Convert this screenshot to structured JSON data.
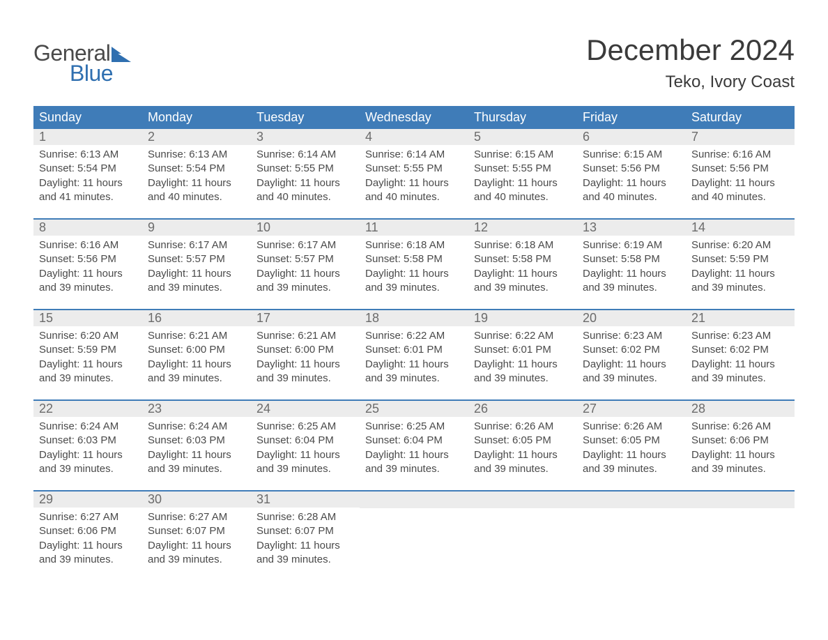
{
  "logo": {
    "text1": "General",
    "text2": "Blue"
  },
  "title": "December 2024",
  "location": "Teko, Ivory Coast",
  "colors": {
    "header_bg": "#3f7cb8",
    "header_text": "#ffffff",
    "daynum_bg": "#ececec",
    "daynum_text": "#6b6b6b",
    "body_text": "#4a4a4a",
    "week_border": "#3f7cb8",
    "logo_blue": "#2f6fb0"
  },
  "day_names": [
    "Sunday",
    "Monday",
    "Tuesday",
    "Wednesday",
    "Thursday",
    "Friday",
    "Saturday"
  ],
  "weeks": [
    [
      {
        "n": "1",
        "sunrise": "Sunrise: 6:13 AM",
        "sunset": "Sunset: 5:54 PM",
        "daylight": "Daylight: 11 hours and 41 minutes."
      },
      {
        "n": "2",
        "sunrise": "Sunrise: 6:13 AM",
        "sunset": "Sunset: 5:54 PM",
        "daylight": "Daylight: 11 hours and 40 minutes."
      },
      {
        "n": "3",
        "sunrise": "Sunrise: 6:14 AM",
        "sunset": "Sunset: 5:55 PM",
        "daylight": "Daylight: 11 hours and 40 minutes."
      },
      {
        "n": "4",
        "sunrise": "Sunrise: 6:14 AM",
        "sunset": "Sunset: 5:55 PM",
        "daylight": "Daylight: 11 hours and 40 minutes."
      },
      {
        "n": "5",
        "sunrise": "Sunrise: 6:15 AM",
        "sunset": "Sunset: 5:55 PM",
        "daylight": "Daylight: 11 hours and 40 minutes."
      },
      {
        "n": "6",
        "sunrise": "Sunrise: 6:15 AM",
        "sunset": "Sunset: 5:56 PM",
        "daylight": "Daylight: 11 hours and 40 minutes."
      },
      {
        "n": "7",
        "sunrise": "Sunrise: 6:16 AM",
        "sunset": "Sunset: 5:56 PM",
        "daylight": "Daylight: 11 hours and 40 minutes."
      }
    ],
    [
      {
        "n": "8",
        "sunrise": "Sunrise: 6:16 AM",
        "sunset": "Sunset: 5:56 PM",
        "daylight": "Daylight: 11 hours and 39 minutes."
      },
      {
        "n": "9",
        "sunrise": "Sunrise: 6:17 AM",
        "sunset": "Sunset: 5:57 PM",
        "daylight": "Daylight: 11 hours and 39 minutes."
      },
      {
        "n": "10",
        "sunrise": "Sunrise: 6:17 AM",
        "sunset": "Sunset: 5:57 PM",
        "daylight": "Daylight: 11 hours and 39 minutes."
      },
      {
        "n": "11",
        "sunrise": "Sunrise: 6:18 AM",
        "sunset": "Sunset: 5:58 PM",
        "daylight": "Daylight: 11 hours and 39 minutes."
      },
      {
        "n": "12",
        "sunrise": "Sunrise: 6:18 AM",
        "sunset": "Sunset: 5:58 PM",
        "daylight": "Daylight: 11 hours and 39 minutes."
      },
      {
        "n": "13",
        "sunrise": "Sunrise: 6:19 AM",
        "sunset": "Sunset: 5:58 PM",
        "daylight": "Daylight: 11 hours and 39 minutes."
      },
      {
        "n": "14",
        "sunrise": "Sunrise: 6:20 AM",
        "sunset": "Sunset: 5:59 PM",
        "daylight": "Daylight: 11 hours and 39 minutes."
      }
    ],
    [
      {
        "n": "15",
        "sunrise": "Sunrise: 6:20 AM",
        "sunset": "Sunset: 5:59 PM",
        "daylight": "Daylight: 11 hours and 39 minutes."
      },
      {
        "n": "16",
        "sunrise": "Sunrise: 6:21 AM",
        "sunset": "Sunset: 6:00 PM",
        "daylight": "Daylight: 11 hours and 39 minutes."
      },
      {
        "n": "17",
        "sunrise": "Sunrise: 6:21 AM",
        "sunset": "Sunset: 6:00 PM",
        "daylight": "Daylight: 11 hours and 39 minutes."
      },
      {
        "n": "18",
        "sunrise": "Sunrise: 6:22 AM",
        "sunset": "Sunset: 6:01 PM",
        "daylight": "Daylight: 11 hours and 39 minutes."
      },
      {
        "n": "19",
        "sunrise": "Sunrise: 6:22 AM",
        "sunset": "Sunset: 6:01 PM",
        "daylight": "Daylight: 11 hours and 39 minutes."
      },
      {
        "n": "20",
        "sunrise": "Sunrise: 6:23 AM",
        "sunset": "Sunset: 6:02 PM",
        "daylight": "Daylight: 11 hours and 39 minutes."
      },
      {
        "n": "21",
        "sunrise": "Sunrise: 6:23 AM",
        "sunset": "Sunset: 6:02 PM",
        "daylight": "Daylight: 11 hours and 39 minutes."
      }
    ],
    [
      {
        "n": "22",
        "sunrise": "Sunrise: 6:24 AM",
        "sunset": "Sunset: 6:03 PM",
        "daylight": "Daylight: 11 hours and 39 minutes."
      },
      {
        "n": "23",
        "sunrise": "Sunrise: 6:24 AM",
        "sunset": "Sunset: 6:03 PM",
        "daylight": "Daylight: 11 hours and 39 minutes."
      },
      {
        "n": "24",
        "sunrise": "Sunrise: 6:25 AM",
        "sunset": "Sunset: 6:04 PM",
        "daylight": "Daylight: 11 hours and 39 minutes."
      },
      {
        "n": "25",
        "sunrise": "Sunrise: 6:25 AM",
        "sunset": "Sunset: 6:04 PM",
        "daylight": "Daylight: 11 hours and 39 minutes."
      },
      {
        "n": "26",
        "sunrise": "Sunrise: 6:26 AM",
        "sunset": "Sunset: 6:05 PM",
        "daylight": "Daylight: 11 hours and 39 minutes."
      },
      {
        "n": "27",
        "sunrise": "Sunrise: 6:26 AM",
        "sunset": "Sunset: 6:05 PM",
        "daylight": "Daylight: 11 hours and 39 minutes."
      },
      {
        "n": "28",
        "sunrise": "Sunrise: 6:26 AM",
        "sunset": "Sunset: 6:06 PM",
        "daylight": "Daylight: 11 hours and 39 minutes."
      }
    ],
    [
      {
        "n": "29",
        "sunrise": "Sunrise: 6:27 AM",
        "sunset": "Sunset: 6:06 PM",
        "daylight": "Daylight: 11 hours and 39 minutes."
      },
      {
        "n": "30",
        "sunrise": "Sunrise: 6:27 AM",
        "sunset": "Sunset: 6:07 PM",
        "daylight": "Daylight: 11 hours and 39 minutes."
      },
      {
        "n": "31",
        "sunrise": "Sunrise: 6:28 AM",
        "sunset": "Sunset: 6:07 PM",
        "daylight": "Daylight: 11 hours and 39 minutes."
      },
      {
        "empty": true
      },
      {
        "empty": true
      },
      {
        "empty": true
      },
      {
        "empty": true
      }
    ]
  ]
}
